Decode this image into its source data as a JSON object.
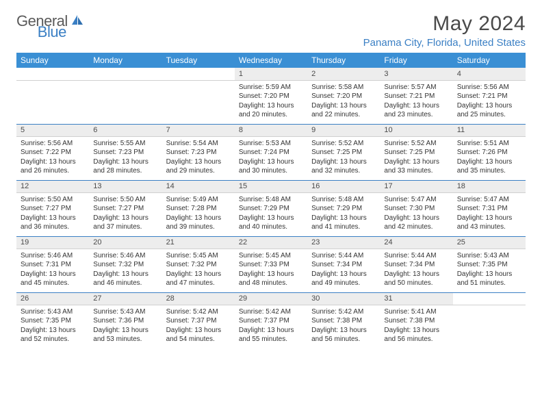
{
  "brand": {
    "part1": "General",
    "part2": "Blue"
  },
  "title": "May 2024",
  "location": "Panama City, Florida, United States",
  "colors": {
    "header_bg": "#3a8fd4",
    "accent": "#3a7fc4",
    "daynum_bg": "#ededed",
    "text": "#333333",
    "title_text": "#4a4a4a"
  },
  "day_headers": [
    "Sunday",
    "Monday",
    "Tuesday",
    "Wednesday",
    "Thursday",
    "Friday",
    "Saturday"
  ],
  "weeks": [
    [
      null,
      null,
      null,
      {
        "n": "1",
        "sr": "5:59 AM",
        "ss": "7:20 PM",
        "dl": "13 hours and 20 minutes."
      },
      {
        "n": "2",
        "sr": "5:58 AM",
        "ss": "7:20 PM",
        "dl": "13 hours and 22 minutes."
      },
      {
        "n": "3",
        "sr": "5:57 AM",
        "ss": "7:21 PM",
        "dl": "13 hours and 23 minutes."
      },
      {
        "n": "4",
        "sr": "5:56 AM",
        "ss": "7:21 PM",
        "dl": "13 hours and 25 minutes."
      }
    ],
    [
      {
        "n": "5",
        "sr": "5:56 AM",
        "ss": "7:22 PM",
        "dl": "13 hours and 26 minutes."
      },
      {
        "n": "6",
        "sr": "5:55 AM",
        "ss": "7:23 PM",
        "dl": "13 hours and 28 minutes."
      },
      {
        "n": "7",
        "sr": "5:54 AM",
        "ss": "7:23 PM",
        "dl": "13 hours and 29 minutes."
      },
      {
        "n": "8",
        "sr": "5:53 AM",
        "ss": "7:24 PM",
        "dl": "13 hours and 30 minutes."
      },
      {
        "n": "9",
        "sr": "5:52 AM",
        "ss": "7:25 PM",
        "dl": "13 hours and 32 minutes."
      },
      {
        "n": "10",
        "sr": "5:52 AM",
        "ss": "7:25 PM",
        "dl": "13 hours and 33 minutes."
      },
      {
        "n": "11",
        "sr": "5:51 AM",
        "ss": "7:26 PM",
        "dl": "13 hours and 35 minutes."
      }
    ],
    [
      {
        "n": "12",
        "sr": "5:50 AM",
        "ss": "7:27 PM",
        "dl": "13 hours and 36 minutes."
      },
      {
        "n": "13",
        "sr": "5:50 AM",
        "ss": "7:27 PM",
        "dl": "13 hours and 37 minutes."
      },
      {
        "n": "14",
        "sr": "5:49 AM",
        "ss": "7:28 PM",
        "dl": "13 hours and 39 minutes."
      },
      {
        "n": "15",
        "sr": "5:48 AM",
        "ss": "7:29 PM",
        "dl": "13 hours and 40 minutes."
      },
      {
        "n": "16",
        "sr": "5:48 AM",
        "ss": "7:29 PM",
        "dl": "13 hours and 41 minutes."
      },
      {
        "n": "17",
        "sr": "5:47 AM",
        "ss": "7:30 PM",
        "dl": "13 hours and 42 minutes."
      },
      {
        "n": "18",
        "sr": "5:47 AM",
        "ss": "7:31 PM",
        "dl": "13 hours and 43 minutes."
      }
    ],
    [
      {
        "n": "19",
        "sr": "5:46 AM",
        "ss": "7:31 PM",
        "dl": "13 hours and 45 minutes."
      },
      {
        "n": "20",
        "sr": "5:46 AM",
        "ss": "7:32 PM",
        "dl": "13 hours and 46 minutes."
      },
      {
        "n": "21",
        "sr": "5:45 AM",
        "ss": "7:32 PM",
        "dl": "13 hours and 47 minutes."
      },
      {
        "n": "22",
        "sr": "5:45 AM",
        "ss": "7:33 PM",
        "dl": "13 hours and 48 minutes."
      },
      {
        "n": "23",
        "sr": "5:44 AM",
        "ss": "7:34 PM",
        "dl": "13 hours and 49 minutes."
      },
      {
        "n": "24",
        "sr": "5:44 AM",
        "ss": "7:34 PM",
        "dl": "13 hours and 50 minutes."
      },
      {
        "n": "25",
        "sr": "5:43 AM",
        "ss": "7:35 PM",
        "dl": "13 hours and 51 minutes."
      }
    ],
    [
      {
        "n": "26",
        "sr": "5:43 AM",
        "ss": "7:35 PM",
        "dl": "13 hours and 52 minutes."
      },
      {
        "n": "27",
        "sr": "5:43 AM",
        "ss": "7:36 PM",
        "dl": "13 hours and 53 minutes."
      },
      {
        "n": "28",
        "sr": "5:42 AM",
        "ss": "7:37 PM",
        "dl": "13 hours and 54 minutes."
      },
      {
        "n": "29",
        "sr": "5:42 AM",
        "ss": "7:37 PM",
        "dl": "13 hours and 55 minutes."
      },
      {
        "n": "30",
        "sr": "5:42 AM",
        "ss": "7:38 PM",
        "dl": "13 hours and 56 minutes."
      },
      {
        "n": "31",
        "sr": "5:41 AM",
        "ss": "7:38 PM",
        "dl": "13 hours and 56 minutes."
      },
      null
    ]
  ],
  "labels": {
    "sunrise": "Sunrise:",
    "sunset": "Sunset:",
    "daylight": "Daylight:"
  }
}
